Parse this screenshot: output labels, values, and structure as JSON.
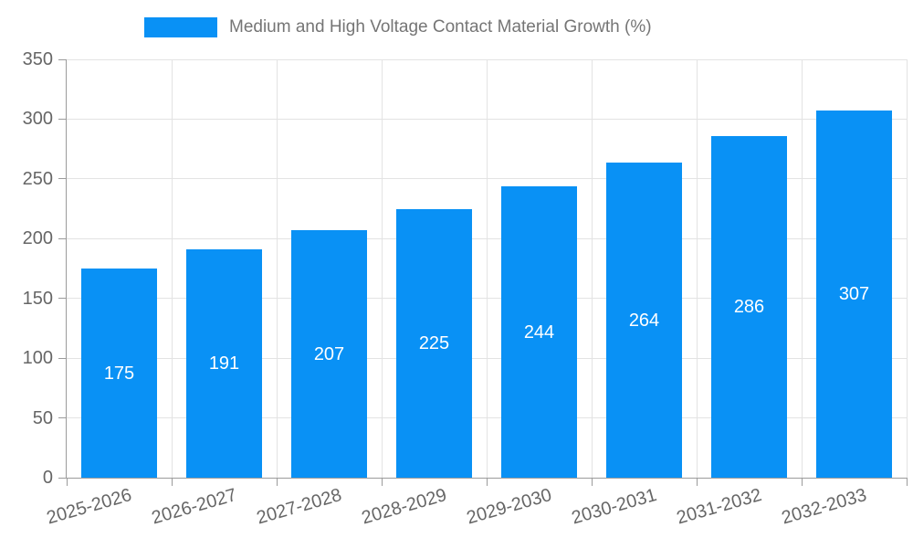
{
  "legend": {
    "label": "Medium and High Voltage Contact Material Growth (%)"
  },
  "colors": {
    "bar": "#0991f5",
    "axis_line": "#9b9b9b",
    "grid_line": "#e3e3e3",
    "axis_text": "#666666",
    "legend_text": "#757575",
    "bar_value_text": "#ffffff"
  },
  "chart_data": {
    "type": "bar",
    "title": "Medium and High Voltage Contact Material Growth (%)",
    "series": [
      {
        "name": "Medium and High Voltage Contact Material Growth (%)",
        "values": [
          175,
          191,
          207,
          225,
          244,
          264,
          286,
          307
        ]
      }
    ],
    "categories": [
      "2025-2026",
      "2026-2027",
      "2027-2028",
      "2028-2029",
      "2029-2030",
      "2030-2031",
      "2031-2032",
      "2032-2033"
    ],
    "data_labels": [
      "175",
      "191",
      "207",
      "225",
      "244",
      "264",
      "286",
      "307"
    ],
    "ytick_labels": [
      "0",
      "50",
      "100",
      "150",
      "200",
      "250",
      "300",
      "350"
    ],
    "xlabel": "",
    "ylabel": "",
    "ylim": [
      0,
      350
    ],
    "ytick_step": 50,
    "grid": true,
    "legend_position": "top",
    "bar_color": "#0991f5",
    "x_tick_label_rotation_deg": -16
  }
}
